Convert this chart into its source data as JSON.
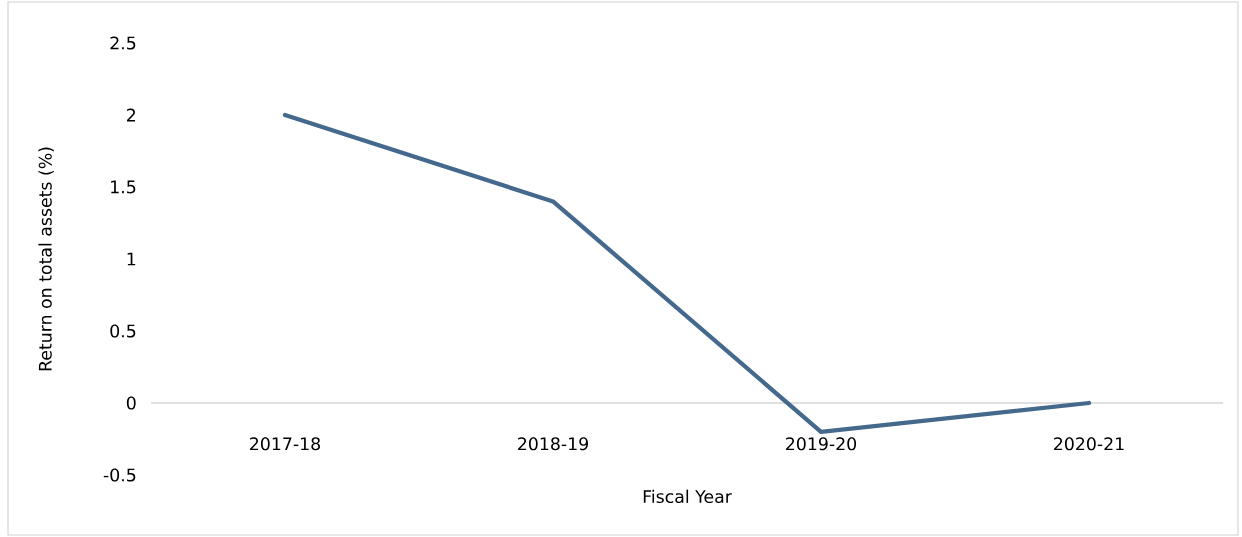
{
  "chart_data": {
    "type": "line",
    "xlabel": "Fiscal Year",
    "ylabel": "Return on total assets (%)",
    "categories": [
      "2017-18",
      "2018-19",
      "2019-20",
      "2020-21"
    ],
    "values": [
      2,
      1.4,
      -0.2,
      0
    ],
    "color": "#44698c",
    "ylim": [
      -0.5,
      2.5
    ],
    "yticks": [
      -0.5,
      0,
      0.5,
      1,
      1.5,
      2,
      2.5
    ]
  }
}
